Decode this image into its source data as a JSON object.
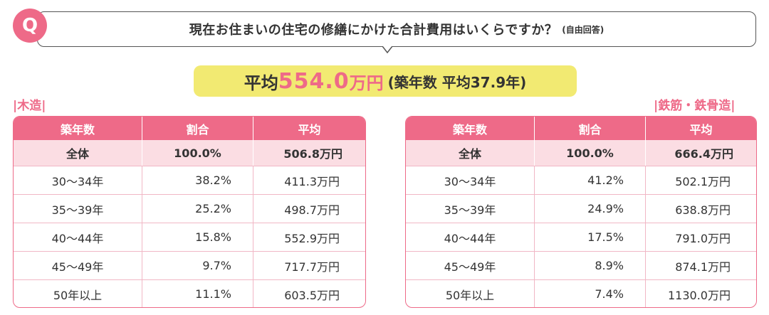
{
  "question": {
    "badge": "Q",
    "text": "現在お住まいの住宅の修繕にかけた合計費用はいくらですか？",
    "note": "(自由回答)"
  },
  "average": {
    "label": "平均",
    "value": "554.0",
    "unit": "万円",
    "sub": "(築年数 平均37.9年)"
  },
  "sections": {
    "left_label": "|木造|",
    "right_label": "|鉄筋・鉄骨造|"
  },
  "tables": {
    "left": {
      "headers": [
        "築年数",
        "割合",
        "平均"
      ],
      "total": [
        "全体",
        "100.0%",
        "506.8万円"
      ],
      "rows": [
        [
          "30〜34年",
          "38.2%",
          "411.3万円"
        ],
        [
          "35〜39年",
          "25.2%",
          "498.7万円"
        ],
        [
          "40〜44年",
          "15.8%",
          "552.9万円"
        ],
        [
          "45〜49年",
          "9.7%",
          "717.7万円"
        ],
        [
          "50年以上",
          "11.1%",
          "603.5万円"
        ]
      ]
    },
    "right": {
      "headers": [
        "築年数",
        "割合",
        "平均"
      ],
      "total": [
        "全体",
        "100.0%",
        "666.4万円"
      ],
      "rows": [
        [
          "30〜34年",
          "41.2%",
          "502.1万円"
        ],
        [
          "35〜39年",
          "24.9%",
          "638.8万円"
        ],
        [
          "40〜44年",
          "17.5%",
          "791.0万円"
        ],
        [
          "45〜49年",
          "8.9%",
          "874.1万円"
        ],
        [
          "50年以上",
          "7.4%",
          "1130.0万円"
        ]
      ]
    }
  },
  "colors": {
    "accent_pink": "#ee6a88",
    "total_row_bg": "#fbdde3",
    "highlight_yellow": "#f2ea72"
  }
}
